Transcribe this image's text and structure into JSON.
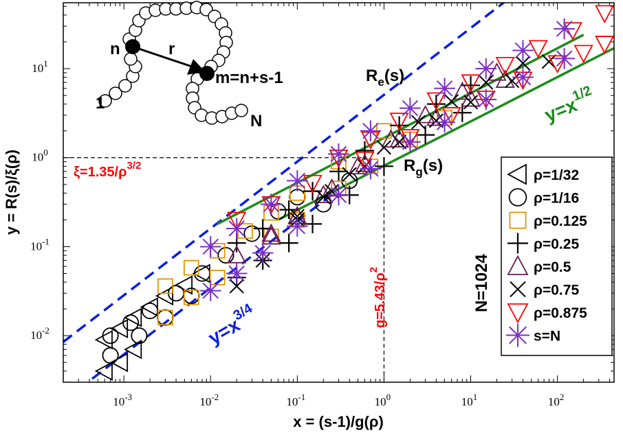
{
  "chart_data": {
    "type": "scatter",
    "scale": "log-log",
    "xlabel": "x = (s-1)/g(ρ)",
    "ylabel": "y = R(s)/ξ(ρ)",
    "xlim": [
      0.0002,
      450
    ],
    "ylim": [
      0.003,
      55
    ],
    "x_ticks": [
      {
        "value": 0.001,
        "base": "10",
        "exp": "-3"
      },
      {
        "value": 0.01,
        "base": "10",
        "exp": "-2"
      },
      {
        "value": 0.1,
        "base": "10",
        "exp": "-1"
      },
      {
        "value": 1,
        "base": "10",
        "exp": "0"
      },
      {
        "value": 10,
        "base": "10",
        "exp": "1"
      },
      {
        "value": 100,
        "base": "10",
        "exp": "2"
      }
    ],
    "y_ticks": [
      {
        "value": 0.01,
        "base": "10",
        "exp": "-2"
      },
      {
        "value": 0.1,
        "base": "10",
        "exp": "-1"
      },
      {
        "value": 1,
        "base": "10",
        "exp": "0"
      },
      {
        "value": 10,
        "base": "10",
        "exp": "1"
      }
    ],
    "legend": {
      "position": "right",
      "entries": [
        {
          "label": "ρ=1/32",
          "marker": "triangle-left",
          "color": "#000000"
        },
        {
          "label": "ρ=1/16",
          "marker": "circle",
          "color": "#000000"
        },
        {
          "label": "ρ=0.125",
          "marker": "square",
          "color": "#e69500"
        },
        {
          "label": "ρ=0.25",
          "marker": "plus",
          "color": "#000000"
        },
        {
          "label": "ρ=0.5",
          "marker": "triangle-up",
          "color": "#6b1b50"
        },
        {
          "label": "ρ=0.75",
          "marker": "cross",
          "color": "#000000"
        },
        {
          "label": "ρ=0.875",
          "marker": "triangle-down",
          "color": "#ff0000"
        },
        {
          "label": "s=N",
          "marker": "star",
          "color": "#7a2fc9"
        }
      ]
    },
    "series": [
      {
        "name": "ρ=1/32",
        "curve": "Re",
        "x": [
          0.0006,
          0.0009,
          0.0013,
          0.002,
          0.003,
          0.005,
          0.008
        ],
        "y": [
          0.009,
          0.012,
          0.016,
          0.021,
          0.028,
          0.037,
          0.05
        ]
      },
      {
        "name": "ρ=1/32",
        "curve": "Rg",
        "x": [
          0.0006,
          0.0009,
          0.0013
        ],
        "y": [
          0.004,
          0.005,
          0.007
        ]
      },
      {
        "name": "ρ=1/16",
        "curve": "Re",
        "x": [
          0.0007,
          0.0012,
          0.002,
          0.004,
          0.008,
          0.015,
          0.03,
          0.06,
          0.1
        ],
        "y": [
          0.01,
          0.014,
          0.019,
          0.03,
          0.05,
          0.08,
          0.14,
          0.25,
          0.36
        ]
      },
      {
        "name": "ρ=1/16",
        "curve": "Rg",
        "x": [
          0.0007,
          0.0015,
          0.003,
          0.006,
          0.2,
          0.4
        ],
        "y": [
          0.006,
          0.01,
          0.016,
          0.028,
          0.3,
          0.55
        ]
      },
      {
        "name": "ρ=0.125",
        "curve": "Re",
        "x": [
          0.003,
          0.006,
          0.012,
          0.025,
          0.05,
          0.1,
          0.3,
          1
        ],
        "y": [
          0.036,
          0.058,
          0.09,
          0.15,
          0.24,
          0.4,
          0.9,
          2
        ]
      },
      {
        "name": "ρ=0.125",
        "curve": "Rg",
        "x": [
          0.003,
          0.006,
          0.012,
          0.05,
          0.1,
          0.3,
          0.7,
          2,
          5
        ],
        "y": [
          0.016,
          0.027,
          0.045,
          0.13,
          0.2,
          0.45,
          0.8,
          1.6,
          2.8
        ]
      },
      {
        "name": "ρ=0.25",
        "curve": "Re",
        "x": [
          0.02,
          0.04,
          0.08,
          0.15,
          0.3,
          0.6,
          1.5,
          4,
          10
        ],
        "y": [
          0.11,
          0.16,
          0.26,
          0.42,
          0.7,
          1.2,
          2.3,
          4,
          6.5
        ]
      },
      {
        "name": "ρ=0.25",
        "curve": "Rg",
        "x": [
          0.02,
          0.04,
          0.08,
          0.15,
          0.4,
          1,
          3,
          8
        ],
        "y": [
          0.045,
          0.07,
          0.11,
          0.18,
          0.38,
          0.8,
          1.8,
          3.2
        ]
      },
      {
        "name": "ρ=0.5",
        "curve": "Re",
        "x": [
          0.05,
          0.1,
          0.2,
          0.5,
          1.2,
          3,
          8,
          20
        ],
        "y": [
          0.14,
          0.22,
          0.38,
          0.8,
          1.6,
          3,
          5.5,
          9
        ]
      },
      {
        "name": "ρ=0.5",
        "curve": "Rg",
        "x": [
          0.02,
          0.05,
          0.1,
          0.25,
          0.6,
          1.5,
          4,
          10,
          25
        ],
        "y": [
          0.08,
          0.13,
          0.22,
          0.45,
          0.85,
          1.6,
          2.8,
          4.6,
          7.5
        ]
      },
      {
        "name": "ρ=0.75",
        "curve": "Re",
        "x": [
          0.1,
          0.2,
          0.4,
          1,
          2.5,
          6,
          15,
          40
        ],
        "y": [
          0.22,
          0.36,
          0.65,
          1.3,
          2.5,
          4.3,
          7,
          11.5
        ]
      },
      {
        "name": "ρ=0.75",
        "curve": "Rg",
        "x": [
          0.02,
          0.04,
          0.1,
          0.25,
          0.6,
          1.5,
          4,
          10,
          30,
          80
        ],
        "y": [
          0.036,
          0.07,
          0.2,
          0.42,
          0.8,
          1.5,
          2.6,
          4.2,
          7.3,
          12
        ]
      },
      {
        "name": "ρ=0.875",
        "curve": "Re",
        "x": [
          0.3,
          0.7,
          1.5,
          4,
          10,
          25,
          60,
          150,
          350
        ],
        "y": [
          1,
          1.6,
          2.6,
          4.4,
          7,
          11,
          17,
          27,
          42
        ]
      },
      {
        "name": "ρ=0.875",
        "curve": "Rg",
        "x": [
          0.02,
          0.05,
          0.15,
          0.6,
          2,
          6,
          15,
          40,
          100,
          200,
          350
        ],
        "y": [
          0.2,
          0.3,
          0.52,
          0.95,
          1.7,
          3,
          4.6,
          7.5,
          11.5,
          15,
          19
        ]
      },
      {
        "name": "s=N",
        "curve": "Re",
        "x": [
          0.01,
          0.02,
          0.05,
          0.1,
          0.3,
          0.7,
          2,
          5,
          15,
          40,
          120
        ],
        "y": [
          0.1,
          0.16,
          0.3,
          0.55,
          1.1,
          2,
          3.6,
          6,
          10,
          16,
          28
        ]
      },
      {
        "name": "s=N",
        "curve": "Rg",
        "x": [
          0.01,
          0.02,
          0.04,
          0.1,
          0.3,
          0.7,
          2,
          5,
          15,
          40,
          120
        ],
        "y": [
          0.032,
          0.05,
          0.085,
          0.17,
          0.38,
          0.75,
          1.5,
          2.5,
          4.5,
          8,
          13
        ]
      }
    ],
    "reference_lines": [
      {
        "name": "y=x^(3/4) upper",
        "style": "dashed",
        "color": "#0a1ee0",
        "x": [
          0.0002,
          40
        ],
        "y": [
          0.0085,
          81
        ]
      },
      {
        "name": "y=x^(3/4) lower",
        "style": "dashed",
        "color": "#0a1ee0",
        "x": [
          0.0003,
          0.3
        ],
        "y": [
          0.0025,
          0.44
        ]
      },
      {
        "name": "y=x^(1/2) upper",
        "style": "solid",
        "color": "#1a8c1a",
        "x": [
          0.012,
          200
        ],
        "y": [
          0.18,
          24
        ]
      },
      {
        "name": "y=x^(1/2) lower",
        "style": "solid",
        "color": "#1a8c1a",
        "x": [
          0.06,
          450
        ],
        "y": [
          0.2,
          17
        ]
      },
      {
        "name": "xi reference",
        "style": "dashed",
        "color": "#000000",
        "x": [
          0.0002,
          0.55
        ],
        "y": [
          1,
          1
        ]
      },
      {
        "name": "g reference",
        "style": "dashed",
        "color": "#000000",
        "x": [
          1,
          1
        ],
        "y": [
          0.003,
          0.8
        ]
      }
    ],
    "annotations": {
      "Re": {
        "main": "R",
        "sub": "e",
        "tail": "(s)"
      },
      "Rg": {
        "main": "R",
        "sub": "g",
        "tail": "(s)"
      },
      "half_law": {
        "main": "y=x",
        "sup": "1/2"
      },
      "three_quarter_law": {
        "main": "y=x",
        "sup": "3/4"
      },
      "xi": {
        "main": "ξ=1.35/ρ",
        "sup": "3/2"
      },
      "g": {
        "main": "g=5.43/ρ",
        "sup": "2"
      },
      "N": "N=1024"
    },
    "inset": {
      "n_label": "n",
      "r_label": "r",
      "m_label": "m=n+s-1",
      "start_label": "1",
      "end_label": "N"
    }
  }
}
